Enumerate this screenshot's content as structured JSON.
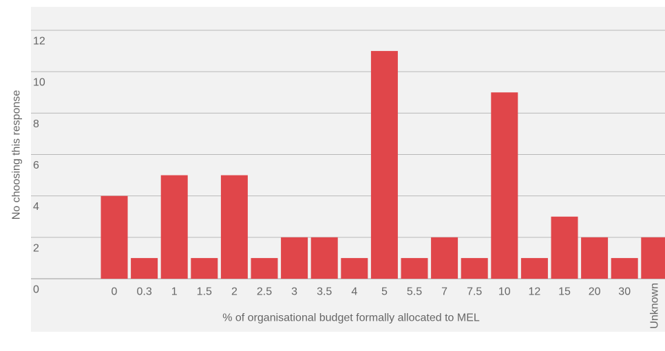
{
  "chart_data": {
    "type": "bar",
    "x_label": "% of organisational budget formally allocated to MEL",
    "y_label": "No choosing this response",
    "categories": [
      "0",
      "0.3",
      "1",
      "1.5",
      "2",
      "2.5",
      "3",
      "3.5",
      "4",
      "5",
      "5.5",
      "7",
      "7.5",
      "10",
      "12",
      "15",
      "20",
      "30",
      "Unknown"
    ],
    "values": [
      4,
      1,
      5,
      1,
      5,
      1,
      2,
      2,
      1,
      11,
      1,
      2,
      1,
      9,
      1,
      3,
      2,
      1,
      2
    ],
    "color": "#e0464a",
    "ylim": [
      0,
      12
    ],
    "yticks": [
      0,
      2,
      4,
      6,
      8,
      10,
      12
    ],
    "grid": true
  }
}
